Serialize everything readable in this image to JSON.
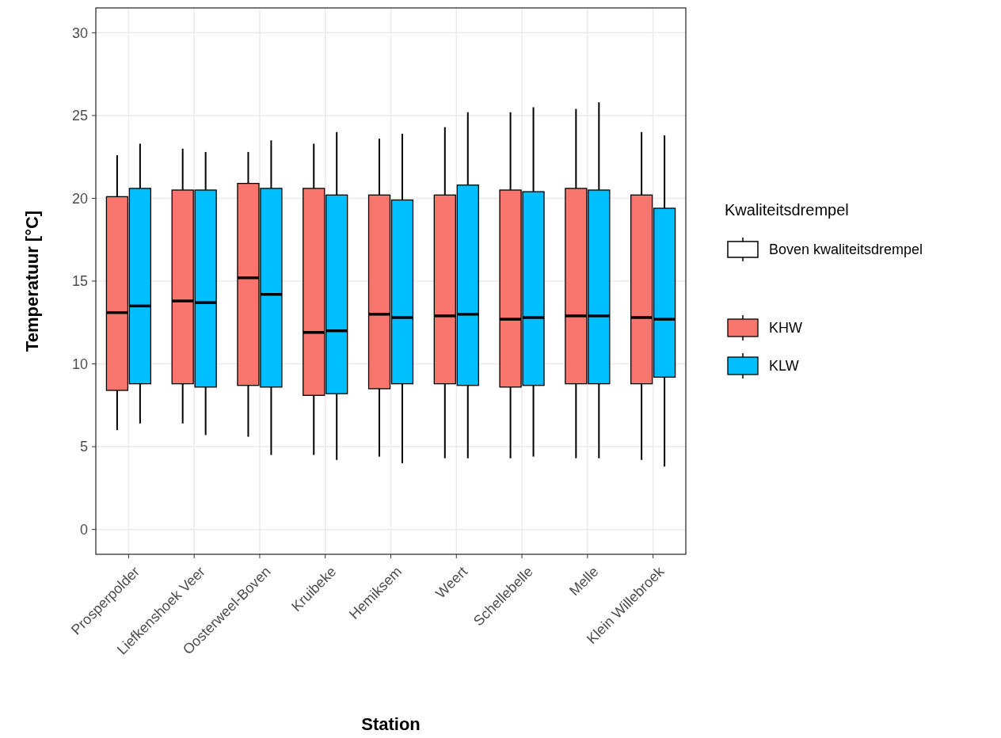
{
  "chart_data": {
    "type": "box",
    "xlabel": "Station",
    "ylabel": "Temperatuur [°C]",
    "legend_title": "Kwaliteitsdrempel",
    "annotations": [
      "Boven kwaliteitsdrempel"
    ],
    "categories": [
      "Prosperpolder",
      "Liefkenshoek Veer",
      "Oosterweel-Boven",
      "Kruibeke",
      "Hemiksem",
      "Weert",
      "Schellebelle",
      "Melle",
      "Klein Willebroek"
    ],
    "ylim": [
      -1.5,
      31.5
    ],
    "yticks": [
      0,
      5,
      10,
      15,
      20,
      25,
      30
    ],
    "grid": true,
    "legend": "right",
    "series": [
      {
        "name": "KHW",
        "color": "#f8766d",
        "boxes": [
          {
            "low": 6.0,
            "q1": 8.4,
            "median": 13.1,
            "q3": 20.1,
            "high": 22.6
          },
          {
            "low": 6.4,
            "q1": 8.8,
            "median": 13.8,
            "q3": 20.5,
            "high": 23.0
          },
          {
            "low": 5.6,
            "q1": 8.7,
            "median": 15.2,
            "q3": 20.9,
            "high": 22.8
          },
          {
            "low": 4.5,
            "q1": 8.1,
            "median": 11.9,
            "q3": 20.6,
            "high": 23.3
          },
          {
            "low": 4.4,
            "q1": 8.5,
            "median": 13.0,
            "q3": 20.2,
            "high": 23.6
          },
          {
            "low": 4.3,
            "q1": 8.8,
            "median": 12.9,
            "q3": 20.2,
            "high": 24.3
          },
          {
            "low": 4.3,
            "q1": 8.6,
            "median": 12.7,
            "q3": 20.5,
            "high": 25.2
          },
          {
            "low": 4.3,
            "q1": 8.8,
            "median": 12.9,
            "q3": 20.6,
            "high": 25.4
          },
          {
            "low": 4.2,
            "q1": 8.8,
            "median": 12.8,
            "q3": 20.2,
            "high": 24.0
          }
        ]
      },
      {
        "name": "KLW",
        "color": "#00bfff",
        "boxes": [
          {
            "low": 6.4,
            "q1": 8.8,
            "median": 13.5,
            "q3": 20.6,
            "high": 23.3
          },
          {
            "low": 5.7,
            "q1": 8.6,
            "median": 13.7,
            "q3": 20.5,
            "high": 22.8
          },
          {
            "low": 4.5,
            "q1": 8.6,
            "median": 14.2,
            "q3": 20.6,
            "high": 23.5
          },
          {
            "low": 4.2,
            "q1": 8.2,
            "median": 12.0,
            "q3": 20.2,
            "high": 24.0
          },
          {
            "low": 4.0,
            "q1": 8.8,
            "median": 12.8,
            "q3": 19.9,
            "high": 23.9
          },
          {
            "low": 4.3,
            "q1": 8.7,
            "median": 13.0,
            "q3": 20.8,
            "high": 25.2
          },
          {
            "low": 4.4,
            "q1": 8.7,
            "median": 12.8,
            "q3": 20.4,
            "high": 25.5
          },
          {
            "low": 4.3,
            "q1": 8.8,
            "median": 12.9,
            "q3": 20.5,
            "high": 25.8
          },
          {
            "low": 3.8,
            "q1": 9.2,
            "median": 12.7,
            "q3": 19.4,
            "high": 23.8
          }
        ]
      }
    ]
  }
}
